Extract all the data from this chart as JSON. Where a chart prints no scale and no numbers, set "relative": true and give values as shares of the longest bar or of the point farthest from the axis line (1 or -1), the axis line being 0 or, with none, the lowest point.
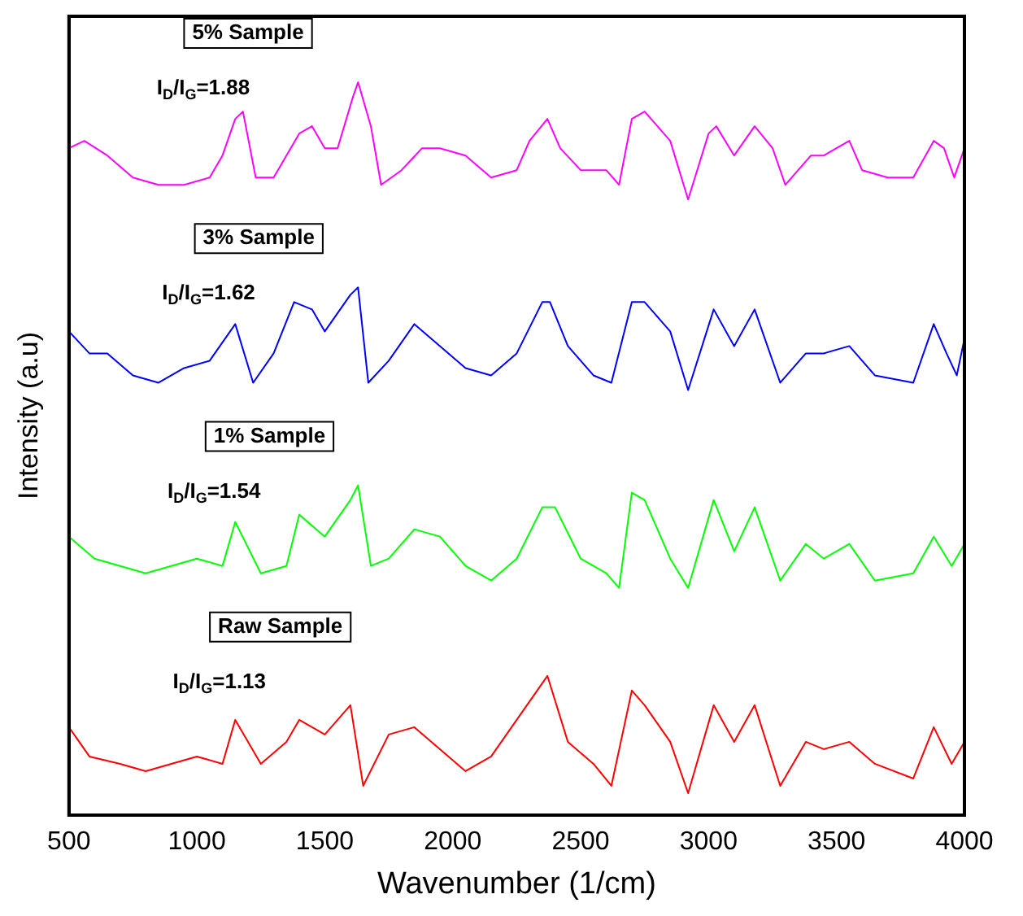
{
  "chart_data": {
    "type": "line",
    "relative": true,
    "xlabel": "Wavenumber (1/cm)",
    "ylabel": "Intensity (a.u)",
    "xlim": [
      500,
      4000
    ],
    "xticks": [
      500,
      1000,
      1500,
      2000,
      2500,
      3000,
      3500,
      4000
    ],
    "grid": false,
    "legend": false,
    "tick_labels": "x",
    "marker": "none",
    "line_style": "solid",
    "series": [
      {
        "color": "#ff00ff",
        "x": [
          500,
          560,
          650,
          750,
          850,
          950,
          1050,
          1100,
          1150,
          1180,
          1230,
          1300,
          1400,
          1450,
          1500,
          1550,
          1610,
          1630,
          1680,
          1720,
          1800,
          1880,
          1950,
          2050,
          2150,
          2250,
          2300,
          2370,
          2420,
          2500,
          2600,
          2650,
          2700,
          2750,
          2850,
          2920,
          3000,
          3030,
          3100,
          3180,
          3250,
          3300,
          3400,
          3450,
          3550,
          3600,
          3700,
          3800,
          3880,
          3920,
          3960,
          4000
        ],
        "values": [
          0.91,
          0.92,
          0.9,
          0.87,
          0.86,
          0.86,
          0.87,
          0.9,
          0.95,
          0.96,
          0.87,
          0.87,
          0.93,
          0.94,
          0.91,
          0.91,
          0.98,
          1.0,
          0.94,
          0.86,
          0.88,
          0.91,
          0.91,
          0.9,
          0.87,
          0.88,
          0.92,
          0.95,
          0.91,
          0.88,
          0.88,
          0.86,
          0.95,
          0.96,
          0.92,
          0.84,
          0.93,
          0.94,
          0.9,
          0.94,
          0.91,
          0.86,
          0.9,
          0.9,
          0.92,
          0.88,
          0.87,
          0.87,
          0.92,
          0.91,
          0.87,
          0.91
        ]
      },
      {
        "color": "#0000ff",
        "x": [
          500,
          580,
          650,
          750,
          850,
          950,
          1050,
          1150,
          1220,
          1300,
          1380,
          1450,
          1500,
          1600,
          1630,
          1670,
          1750,
          1850,
          1950,
          2050,
          2150,
          2250,
          2350,
          2380,
          2450,
          2550,
          2620,
          2700,
          2750,
          2850,
          2920,
          3020,
          3100,
          3180,
          3280,
          3380,
          3450,
          3550,
          3650,
          3800,
          3880,
          3930,
          3970,
          4000
        ],
        "values": [
          0.66,
          0.63,
          0.63,
          0.6,
          0.59,
          0.61,
          0.62,
          0.67,
          0.59,
          0.63,
          0.7,
          0.69,
          0.66,
          0.71,
          0.72,
          0.59,
          0.62,
          0.67,
          0.64,
          0.61,
          0.6,
          0.63,
          0.7,
          0.7,
          0.64,
          0.6,
          0.59,
          0.7,
          0.7,
          0.66,
          0.58,
          0.69,
          0.64,
          0.69,
          0.59,
          0.63,
          0.63,
          0.64,
          0.6,
          0.59,
          0.67,
          0.63,
          0.6,
          0.65
        ]
      },
      {
        "color": "#00ff00",
        "x": [
          500,
          600,
          700,
          800,
          900,
          1000,
          1100,
          1150,
          1250,
          1350,
          1400,
          1500,
          1600,
          1630,
          1680,
          1750,
          1850,
          1950,
          2050,
          2150,
          2250,
          2350,
          2400,
          2500,
          2600,
          2650,
          2700,
          2750,
          2850,
          2920,
          3020,
          3100,
          3180,
          3280,
          3380,
          3450,
          3550,
          3650,
          3800,
          3880,
          3950,
          4000
        ],
        "values": [
          0.38,
          0.35,
          0.34,
          0.33,
          0.34,
          0.35,
          0.34,
          0.4,
          0.33,
          0.34,
          0.41,
          0.38,
          0.43,
          0.45,
          0.34,
          0.35,
          0.39,
          0.38,
          0.34,
          0.32,
          0.35,
          0.42,
          0.42,
          0.35,
          0.33,
          0.31,
          0.44,
          0.43,
          0.35,
          0.31,
          0.43,
          0.36,
          0.42,
          0.32,
          0.37,
          0.35,
          0.37,
          0.32,
          0.33,
          0.38,
          0.34,
          0.37
        ]
      },
      {
        "color": "#ff0000",
        "x": [
          500,
          580,
          700,
          800,
          900,
          1000,
          1100,
          1150,
          1250,
          1350,
          1400,
          1500,
          1600,
          1650,
          1750,
          1850,
          1950,
          2050,
          2150,
          2250,
          2330,
          2370,
          2450,
          2550,
          2620,
          2700,
          2750,
          2850,
          2920,
          3020,
          3100,
          3180,
          3280,
          3380,
          3450,
          3550,
          3650,
          3800,
          3880,
          3950,
          4000
        ],
        "values": [
          0.12,
          0.08,
          0.07,
          0.06,
          0.07,
          0.08,
          0.07,
          0.13,
          0.07,
          0.1,
          0.13,
          0.11,
          0.15,
          0.04,
          0.11,
          0.12,
          0.09,
          0.06,
          0.08,
          0.13,
          0.17,
          0.19,
          0.1,
          0.07,
          0.04,
          0.17,
          0.15,
          0.1,
          0.03,
          0.15,
          0.1,
          0.15,
          0.04,
          0.1,
          0.09,
          0.1,
          0.07,
          0.05,
          0.12,
          0.07,
          0.1
        ]
      }
    ],
    "annotations": [
      "5% Sample",
      "I$_{D}$/I$_{G}$=1.88",
      "3% Sample",
      "I$_{D}$/I$_{G}$=1.62",
      "1% Sample",
      "I$_{D}$/I$_{G}$=1.54",
      "Raw Sample",
      "I$_{D}$/I$_{G}$=1.13"
    ]
  }
}
